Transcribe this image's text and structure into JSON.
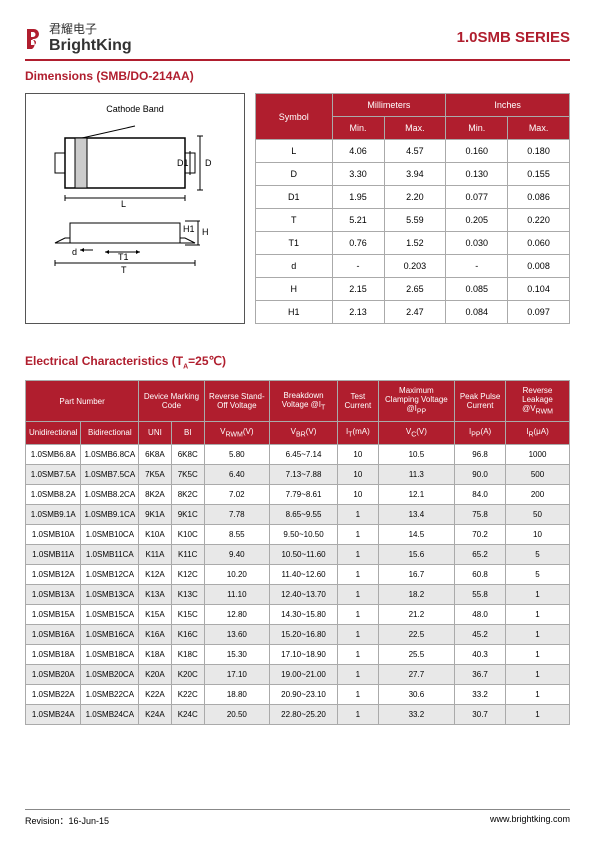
{
  "header": {
    "logo_cn": "君耀电子",
    "logo_en": "BrightKing",
    "series": "1.0SMB SERIES"
  },
  "dimensions": {
    "title": "Dimensions (SMB/DO-214AA)",
    "diagram_label": "Cathode Band",
    "labels": {
      "D": "D",
      "D1": "D1",
      "L": "L",
      "H": "H",
      "H1": "H1",
      "d": "d",
      "T": "T",
      "T1": "T1"
    },
    "table": {
      "headers": {
        "symbol": "Symbol",
        "mm": "Millimeters",
        "in": "Inches",
        "min": "Min.",
        "max": "Max."
      },
      "rows": [
        {
          "sym": "L",
          "mm_min": "4.06",
          "mm_max": "4.57",
          "in_min": "0.160",
          "in_max": "0.180"
        },
        {
          "sym": "D",
          "mm_min": "3.30",
          "mm_max": "3.94",
          "in_min": "0.130",
          "in_max": "0.155"
        },
        {
          "sym": "D1",
          "mm_min": "1.95",
          "mm_max": "2.20",
          "in_min": "0.077",
          "in_max": "0.086"
        },
        {
          "sym": "T",
          "mm_min": "5.21",
          "mm_max": "5.59",
          "in_min": "0.205",
          "in_max": "0.220"
        },
        {
          "sym": "T1",
          "mm_min": "0.76",
          "mm_max": "1.52",
          "in_min": "0.030",
          "in_max": "0.060"
        },
        {
          "sym": "d",
          "mm_min": "-",
          "mm_max": "0.203",
          "in_min": "-",
          "in_max": "0.008"
        },
        {
          "sym": "H",
          "mm_min": "2.15",
          "mm_max": "2.65",
          "in_min": "0.085",
          "in_max": "0.104"
        },
        {
          "sym": "H1",
          "mm_min": "2.13",
          "mm_max": "2.47",
          "in_min": "0.084",
          "in_max": "0.097"
        }
      ]
    }
  },
  "electrical": {
    "title": "Electrical Characteristics (T",
    "title_sub": "A",
    "title_rest": "=25℃)",
    "headers": {
      "part": "Part Number",
      "marking": "Device Marking Code",
      "standoff": "Reverse Stand-Off Voltage",
      "breakdown": "Breakdown Voltage @I",
      "breakdown_sub": "T",
      "test": "Test Current",
      "clamp": "Maximum Clamping Voltage @I",
      "clamp_sub": "PP",
      "peak": "Peak Pulse Current",
      "leak": "Reverse Leakage @V",
      "leak_sub": "RWM",
      "uni": "Unidirectional",
      "bi": "Bidirectional",
      "uni_s": "UNI",
      "bi_s": "BI",
      "vrwm": "V",
      "vrwm_sub": "RWM",
      "vrwm_unit": "(V)",
      "vbr": "V",
      "vbr_sub": "BR",
      "vbr_unit": "(V)",
      "it": "I",
      "it_sub": "T",
      "it_unit": "(mA)",
      "vc": "V",
      "vc_sub": "C",
      "vc_unit": "(V)",
      "ipp": "I",
      "ipp_sub": "PP",
      "ipp_unit": "(A)",
      "ir": "I",
      "ir_sub": "R",
      "ir_unit": "(μA)"
    },
    "rows": [
      {
        "u": "1.0SMB6.8A",
        "b": "1.0SMB6.8CA",
        "cu": "6K8A",
        "cb": "6K8C",
        "vr": "5.80",
        "vb": "6.45~7.14",
        "it": "10",
        "vc": "10.5",
        "ip": "96.8",
        "ir": "1000"
      },
      {
        "u": "1.0SMB7.5A",
        "b": "1.0SMB7.5CA",
        "cu": "7K5A",
        "cb": "7K5C",
        "vr": "6.40",
        "vb": "7.13~7.88",
        "it": "10",
        "vc": "11.3",
        "ip": "90.0",
        "ir": "500"
      },
      {
        "u": "1.0SMB8.2A",
        "b": "1.0SMB8.2CA",
        "cu": "8K2A",
        "cb": "8K2C",
        "vr": "7.02",
        "vb": "7.79~8.61",
        "it": "10",
        "vc": "12.1",
        "ip": "84.0",
        "ir": "200"
      },
      {
        "u": "1.0SMB9.1A",
        "b": "1.0SMB9.1CA",
        "cu": "9K1A",
        "cb": "9K1C",
        "vr": "7.78",
        "vb": "8.65~9.55",
        "it": "1",
        "vc": "13.4",
        "ip": "75.8",
        "ir": "50"
      },
      {
        "u": "1.0SMB10A",
        "b": "1.0SMB10CA",
        "cu": "K10A",
        "cb": "K10C",
        "vr": "8.55",
        "vb": "9.50~10.50",
        "it": "1",
        "vc": "14.5",
        "ip": "70.2",
        "ir": "10"
      },
      {
        "u": "1.0SMB11A",
        "b": "1.0SMB11CA",
        "cu": "K11A",
        "cb": "K11C",
        "vr": "9.40",
        "vb": "10.50~11.60",
        "it": "1",
        "vc": "15.6",
        "ip": "65.2",
        "ir": "5"
      },
      {
        "u": "1.0SMB12A",
        "b": "1.0SMB12CA",
        "cu": "K12A",
        "cb": "K12C",
        "vr": "10.20",
        "vb": "11.40~12.60",
        "it": "1",
        "vc": "16.7",
        "ip": "60.8",
        "ir": "5"
      },
      {
        "u": "1.0SMB13A",
        "b": "1.0SMB13CA",
        "cu": "K13A",
        "cb": "K13C",
        "vr": "11.10",
        "vb": "12.40~13.70",
        "it": "1",
        "vc": "18.2",
        "ip": "55.8",
        "ir": "1"
      },
      {
        "u": "1.0SMB15A",
        "b": "1.0SMB15CA",
        "cu": "K15A",
        "cb": "K15C",
        "vr": "12.80",
        "vb": "14.30~15.80",
        "it": "1",
        "vc": "21.2",
        "ip": "48.0",
        "ir": "1"
      },
      {
        "u": "1.0SMB16A",
        "b": "1.0SMB16CA",
        "cu": "K16A",
        "cb": "K16C",
        "vr": "13.60",
        "vb": "15.20~16.80",
        "it": "1",
        "vc": "22.5",
        "ip": "45.2",
        "ir": "1"
      },
      {
        "u": "1.0SMB18A",
        "b": "1.0SMB18CA",
        "cu": "K18A",
        "cb": "K18C",
        "vr": "15.30",
        "vb": "17.10~18.90",
        "it": "1",
        "vc": "25.5",
        "ip": "40.3",
        "ir": "1"
      },
      {
        "u": "1.0SMB20A",
        "b": "1.0SMB20CA",
        "cu": "K20A",
        "cb": "K20C",
        "vr": "17.10",
        "vb": "19.00~21.00",
        "it": "1",
        "vc": "27.7",
        "ip": "36.7",
        "ir": "1"
      },
      {
        "u": "1.0SMB22A",
        "b": "1.0SMB22CA",
        "cu": "K22A",
        "cb": "K22C",
        "vr": "18.80",
        "vb": "20.90~23.10",
        "it": "1",
        "vc": "30.6",
        "ip": "33.2",
        "ir": "1"
      },
      {
        "u": "1.0SMB24A",
        "b": "1.0SMB24CA",
        "cu": "K24A",
        "cb": "K24C",
        "vr": "20.50",
        "vb": "22.80~25.20",
        "it": "1",
        "vc": "33.2",
        "ip": "30.7",
        "ir": "1"
      }
    ]
  },
  "footer": {
    "revision": "Revision：16-Jun-15",
    "url": "www.brightking.com"
  },
  "colors": {
    "brand_red": "#b01e2e",
    "row_alt": "#e8e8e8",
    "border": "#aaaaaa"
  }
}
